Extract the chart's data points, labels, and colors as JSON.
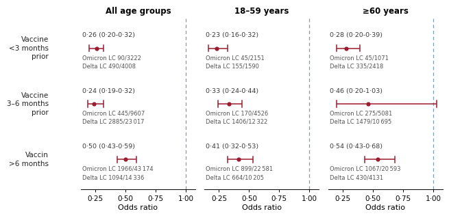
{
  "panels": [
    {
      "title": "All age groups",
      "rows": [
        {
          "y_label": "Vaccin\n>6 months",
          "or": 0.26,
          "ci_lo": 0.2,
          "ci_hi": 0.32,
          "or_text": "0·26 (0·20-0·32)",
          "line1": "Omicron LC 90/3222",
          "line2": "Delta LC 490/4008"
        },
        {
          "y_label": "Vaccine\n3–6 months\nprior",
          "or": 0.24,
          "ci_lo": 0.19,
          "ci_hi": 0.32,
          "or_text": "0·24 (0·19-0·32)",
          "line1": "Omicron LC 445/9607",
          "line2": "Delta LC 2885/23 017"
        },
        {
          "y_label": "Vaccine\n<3 months\nprior",
          "or": 0.5,
          "ci_lo": 0.43,
          "ci_hi": 0.59,
          "or_text": "0·50 (0·43-0·59)",
          "line1": "Omicron LC 1966/43 174",
          "line2": "Delta LC 1094/14 336"
        }
      ]
    },
    {
      "title": "18–59 years",
      "rows": [
        {
          "y_label": "",
          "or": 0.23,
          "ci_lo": 0.16,
          "ci_hi": 0.32,
          "or_text": "0·23 (0·16-0·32)",
          "line1": "Omicron LC 45/2151",
          "line2": "Delta LC 155/1590"
        },
        {
          "y_label": "",
          "or": 0.33,
          "ci_lo": 0.24,
          "ci_hi": 0.44,
          "or_text": "0·33 (0·24-0·44)",
          "line1": "Omicron LC 170/4526",
          "line2": "Delta LC 1406/12 322"
        },
        {
          "y_label": "",
          "or": 0.41,
          "ci_lo": 0.32,
          "ci_hi": 0.53,
          "or_text": "0·41 (0·32-0·53)",
          "line1": "Omicron LC 899/22 581",
          "line2": "Delta LC 664/10 205"
        }
      ]
    },
    {
      "title": "≥60 years",
      "rows": [
        {
          "y_label": "",
          "or": 0.28,
          "ci_lo": 0.2,
          "ci_hi": 0.39,
          "or_text": "0·28 (0·20-0·39)",
          "line1": "Omicron LC 45/1071",
          "line2": "Delta LC 335/2418"
        },
        {
          "y_label": "",
          "or": 0.46,
          "ci_lo": 0.2,
          "ci_hi": 1.03,
          "or_text": "0·46 (0·20-1·03)",
          "line1": "Omicron LC 275/5081",
          "line2": "Delta LC 1479/10 695"
        },
        {
          "y_label": "",
          "or": 0.54,
          "ci_lo": 0.43,
          "ci_hi": 0.68,
          "or_text": "0·54 (0·43-0·68)",
          "line1": "Omicron LC 1067/20 593",
          "line2": "Delta LC 430/4131"
        }
      ]
    }
  ],
  "x_label": "Odds ratio",
  "xlim": [
    0.13,
    1.08
  ],
  "xticks": [
    0.25,
    0.5,
    0.75,
    1.0
  ],
  "xticklabels": [
    "0·25",
    "0·50",
    "0·75",
    "1·00"
  ],
  "vline_x": 1.0,
  "dot_color": "#9b1c2e",
  "line_color": "#9b1c2e",
  "bg_color": "#ffffff"
}
